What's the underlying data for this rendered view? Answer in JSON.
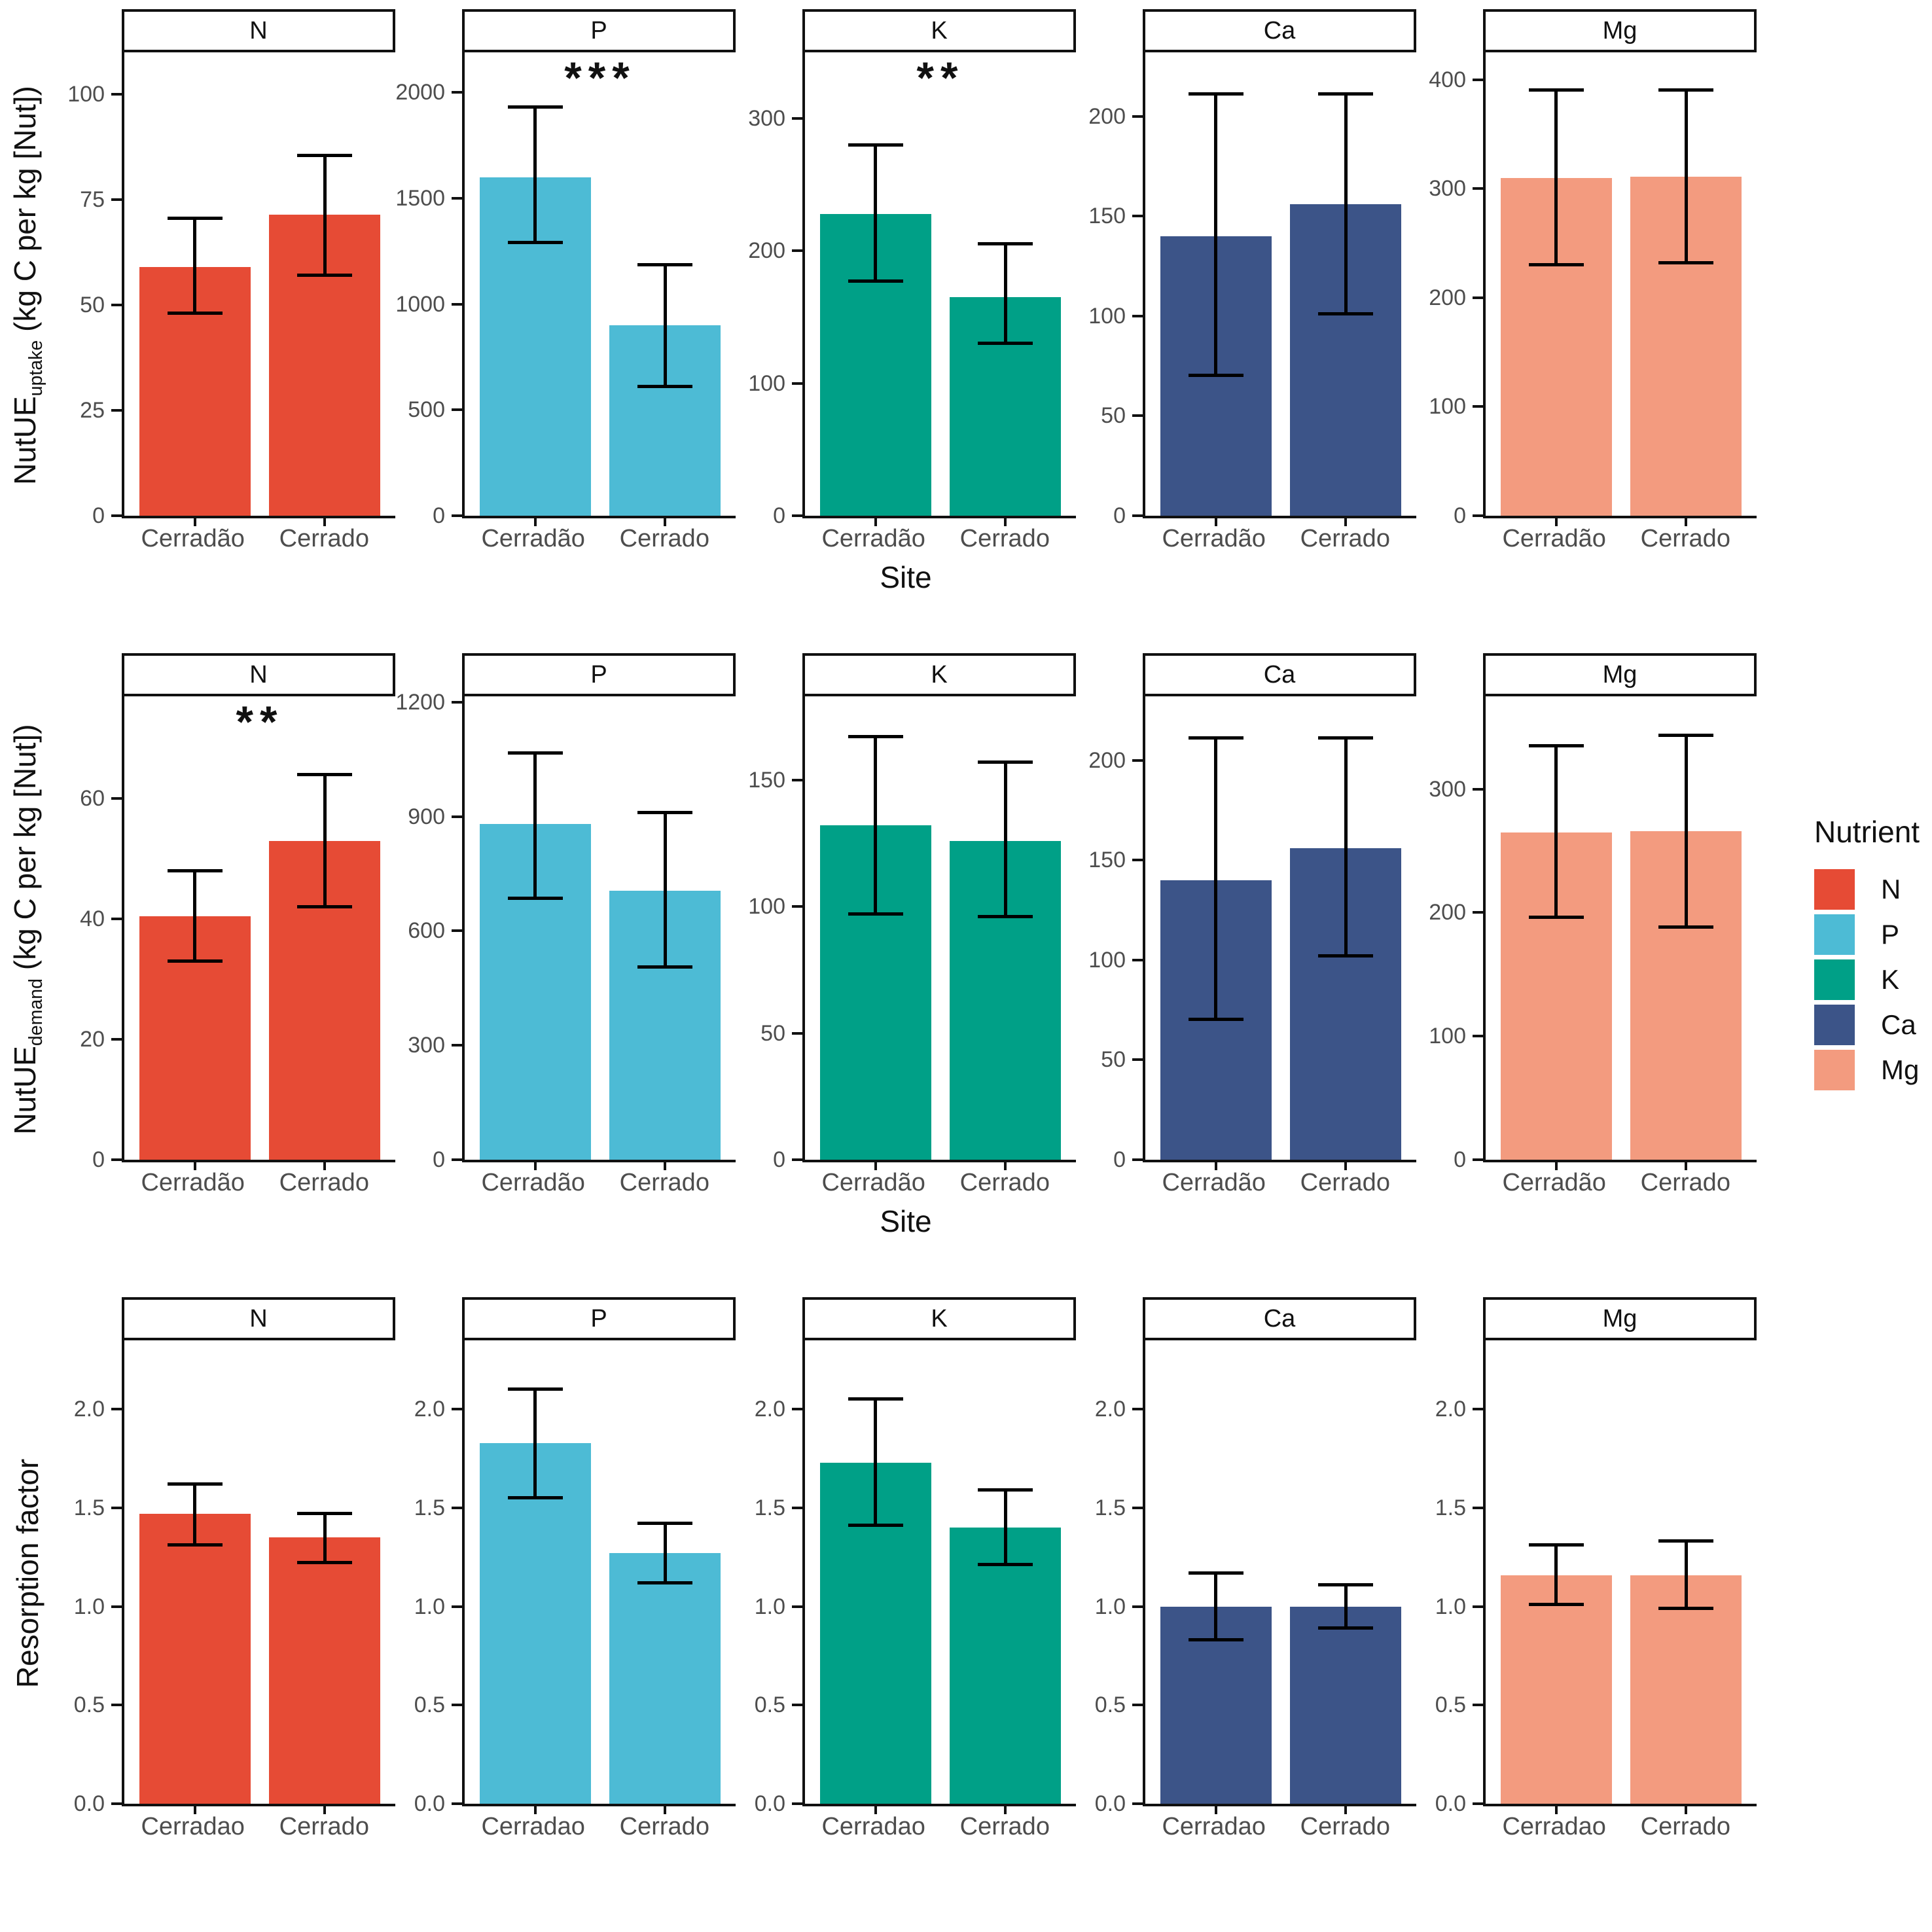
{
  "chart_data": {
    "type": "bar",
    "layout": "3 rows by 5 facet columns; grouped by site with error bars; grid off; white background; boxed facet strips",
    "legend": {
      "title": "Nutrient",
      "position": "right",
      "entries": [
        {
          "label": "N",
          "color": "#E64B35"
        },
        {
          "label": "P",
          "color": "#4DBBD5"
        },
        {
          "label": "K",
          "color": "#00A087"
        },
        {
          "label": "Ca",
          "color": "#3C5488"
        },
        {
          "label": "Mg",
          "color": "#F39B7F"
        }
      ]
    },
    "rows": [
      {
        "ylabel": {
          "prefix": "NutUE",
          "sub": "uptake",
          "rest": " (kg C per kg [Nut])"
        },
        "xlabel": "Site",
        "categories": [
          "Cerradão",
          "Cerrado"
        ],
        "panels": [
          {
            "facet": "N",
            "color": "#E64B35",
            "significance": "",
            "ymax": 110,
            "tick_values": [
              0,
              25,
              50,
              75,
              100
            ],
            "tick_labels": [
              "0",
              "25",
              "50",
              "75",
              "100"
            ],
            "bars": [
              {
                "site": "Cerradão",
                "value": 59,
                "err_low": 48,
                "err_high": 70.5
              },
              {
                "site": "Cerrado",
                "value": 71.5,
                "err_low": 57,
                "err_high": 85.5
              }
            ]
          },
          {
            "facet": "P",
            "color": "#4DBBD5",
            "significance": "***",
            "ymax": 2190,
            "tick_values": [
              0,
              500,
              1000,
              1500,
              2000
            ],
            "tick_labels": [
              "0",
              "500",
              "1000",
              "1500",
              "2000"
            ],
            "bars": [
              {
                "site": "Cerradão",
                "value": 1600,
                "err_low": 1290,
                "err_high": 1930
              },
              {
                "site": "Cerrado",
                "value": 900,
                "err_low": 610,
                "err_high": 1185
              }
            ]
          },
          {
            "facet": "K",
            "color": "#00A087",
            "significance": "**",
            "ymax": 350,
            "tick_values": [
              0,
              100,
              200,
              300
            ],
            "tick_labels": [
              "0",
              "100",
              "200",
              "300"
            ],
            "bars": [
              {
                "site": "Cerradão",
                "value": 228,
                "err_low": 177,
                "err_high": 280
              },
              {
                "site": "Cerrado",
                "value": 165,
                "err_low": 130,
                "err_high": 205
              }
            ]
          },
          {
            "facet": "Ca",
            "color": "#3C5488",
            "significance": "",
            "ymax": 232,
            "tick_values": [
              0,
              50,
              100,
              150,
              200
            ],
            "tick_labels": [
              "0",
              "50",
              "100",
              "150",
              "200"
            ],
            "bars": [
              {
                "site": "Cerradão",
                "value": 140,
                "err_low": 70,
                "err_high": 211
              },
              {
                "site": "Cerrado",
                "value": 156,
                "err_low": 101,
                "err_high": 211
              }
            ]
          },
          {
            "facet": "Mg",
            "color": "#F39B7F",
            "significance": "",
            "ymax": 425,
            "tick_values": [
              0,
              100,
              200,
              300,
              400
            ],
            "tick_labels": [
              "0",
              "100",
              "200",
              "300",
              "400"
            ],
            "bars": [
              {
                "site": "Cerradão",
                "value": 310,
                "err_low": 230,
                "err_high": 390
              },
              {
                "site": "Cerrado",
                "value": 311,
                "err_low": 232,
                "err_high": 390
              }
            ]
          }
        ]
      },
      {
        "ylabel": {
          "prefix": "NutUE",
          "sub": "demand",
          "rest": " (kg C per kg [Nut])"
        },
        "xlabel": "Site",
        "categories": [
          "Cerradão",
          "Cerrado"
        ],
        "panels": [
          {
            "facet": "N",
            "color": "#E64B35",
            "significance": "**",
            "ymax": 77,
            "tick_values": [
              0,
              20,
              40,
              60
            ],
            "tick_labels": [
              "0",
              "20",
              "40",
              "60"
            ],
            "bars": [
              {
                "site": "Cerradão",
                "value": 40.5,
                "err_low": 33,
                "err_high": 48
              },
              {
                "site": "Cerrado",
                "value": 53,
                "err_low": 42,
                "err_high": 64
              }
            ]
          },
          {
            "facet": "P",
            "color": "#4DBBD5",
            "significance": "",
            "ymax": 1215,
            "tick_values": [
              0,
              300,
              600,
              900,
              1200
            ],
            "tick_labels": [
              "0",
              "300",
              "600",
              "900",
              "1200"
            ],
            "bars": [
              {
                "site": "Cerradão",
                "value": 880,
                "err_low": 685,
                "err_high": 1065
              },
              {
                "site": "Cerrado",
                "value": 705,
                "err_low": 505,
                "err_high": 910
              }
            ]
          },
          {
            "facet": "K",
            "color": "#00A087",
            "significance": "",
            "ymax": 183,
            "tick_values": [
              0,
              50,
              100,
              150
            ],
            "tick_labels": [
              "0",
              "50",
              "100",
              "150"
            ],
            "bars": [
              {
                "site": "Cerradão",
                "value": 132,
                "err_low": 97,
                "err_high": 167
              },
              {
                "site": "Cerrado",
                "value": 126,
                "err_low": 96,
                "err_high": 157
              }
            ]
          },
          {
            "facet": "Ca",
            "color": "#3C5488",
            "significance": "",
            "ymax": 232,
            "tick_values": [
              0,
              50,
              100,
              150,
              200
            ],
            "tick_labels": [
              "0",
              "50",
              "100",
              "150",
              "200"
            ],
            "bars": [
              {
                "site": "Cerradão",
                "value": 140,
                "err_low": 70,
                "err_high": 211
              },
              {
                "site": "Cerrado",
                "value": 156,
                "err_low": 102,
                "err_high": 211
              }
            ]
          },
          {
            "facet": "Mg",
            "color": "#F39B7F",
            "significance": "",
            "ymax": 375,
            "tick_values": [
              0,
              100,
              200,
              300
            ],
            "tick_labels": [
              "0",
              "100",
              "200",
              "300"
            ],
            "bars": [
              {
                "site": "Cerradão",
                "value": 265,
                "err_low": 196,
                "err_high": 335
              },
              {
                "site": "Cerrado",
                "value": 266,
                "err_low": 188,
                "err_high": 343
              }
            ]
          }
        ]
      },
      {
        "ylabel": {
          "prefix": "Resorption factor",
          "sub": "",
          "rest": ""
        },
        "xlabel": "",
        "categories": [
          "Cerradao",
          "Cerrado"
        ],
        "panels": [
          {
            "facet": "N",
            "color": "#E64B35",
            "significance": "",
            "ymax": 2.35,
            "tick_values": [
              0,
              0.5,
              1,
              1.5,
              2
            ],
            "tick_labels": [
              "0.0",
              "0.5",
              "1.0",
              "1.5",
              "2.0"
            ],
            "bars": [
              {
                "site": "Cerradao",
                "value": 1.47,
                "err_low": 1.31,
                "err_high": 1.62
              },
              {
                "site": "Cerrado",
                "value": 1.35,
                "err_low": 1.22,
                "err_high": 1.47
              }
            ]
          },
          {
            "facet": "P",
            "color": "#4DBBD5",
            "significance": "",
            "ymax": 2.35,
            "tick_values": [
              0,
              0.5,
              1,
              1.5,
              2
            ],
            "tick_labels": [
              "0.0",
              "0.5",
              "1.0",
              "1.5",
              "2.0"
            ],
            "bars": [
              {
                "site": "Cerradao",
                "value": 1.83,
                "err_low": 1.55,
                "err_high": 2.1
              },
              {
                "site": "Cerrado",
                "value": 1.27,
                "err_low": 1.12,
                "err_high": 1.42
              }
            ]
          },
          {
            "facet": "K",
            "color": "#00A087",
            "significance": "",
            "ymax": 2.35,
            "tick_values": [
              0,
              0.5,
              1,
              1.5,
              2
            ],
            "tick_labels": [
              "0.0",
              "0.5",
              "1.0",
              "1.5",
              "2.0"
            ],
            "bars": [
              {
                "site": "Cerradao",
                "value": 1.73,
                "err_low": 1.41,
                "err_high": 2.05
              },
              {
                "site": "Cerrado",
                "value": 1.4,
                "err_low": 1.21,
                "err_high": 1.59
              }
            ]
          },
          {
            "facet": "Ca",
            "color": "#3C5488",
            "significance": "",
            "ymax": 2.35,
            "tick_values": [
              0,
              0.5,
              1,
              1.5,
              2
            ],
            "tick_labels": [
              "0.0",
              "0.5",
              "1.0",
              "1.5",
              "2.0"
            ],
            "bars": [
              {
                "site": "Cerradao",
                "value": 1.0,
                "err_low": 0.83,
                "err_high": 1.17
              },
              {
                "site": "Cerrado",
                "value": 1.0,
                "err_low": 0.89,
                "err_high": 1.11
              }
            ]
          },
          {
            "facet": "Mg",
            "color": "#F39B7F",
            "significance": "",
            "ymax": 2.35,
            "tick_values": [
              0,
              0.5,
              1,
              1.5,
              2
            ],
            "tick_labels": [
              "0.0",
              "0.5",
              "1.0",
              "1.5",
              "2.0"
            ],
            "bars": [
              {
                "site": "Cerradao",
                "value": 1.16,
                "err_low": 1.01,
                "err_high": 1.31
              },
              {
                "site": "Cerrado",
                "value": 1.16,
                "err_low": 0.99,
                "err_high": 1.33
              }
            ]
          }
        ]
      }
    ],
    "style": {
      "axis_text_color": "#4d4d4d",
      "axis_line_color": "#111111",
      "error_bar_color": "#000000",
      "background": "#ffffff"
    }
  }
}
